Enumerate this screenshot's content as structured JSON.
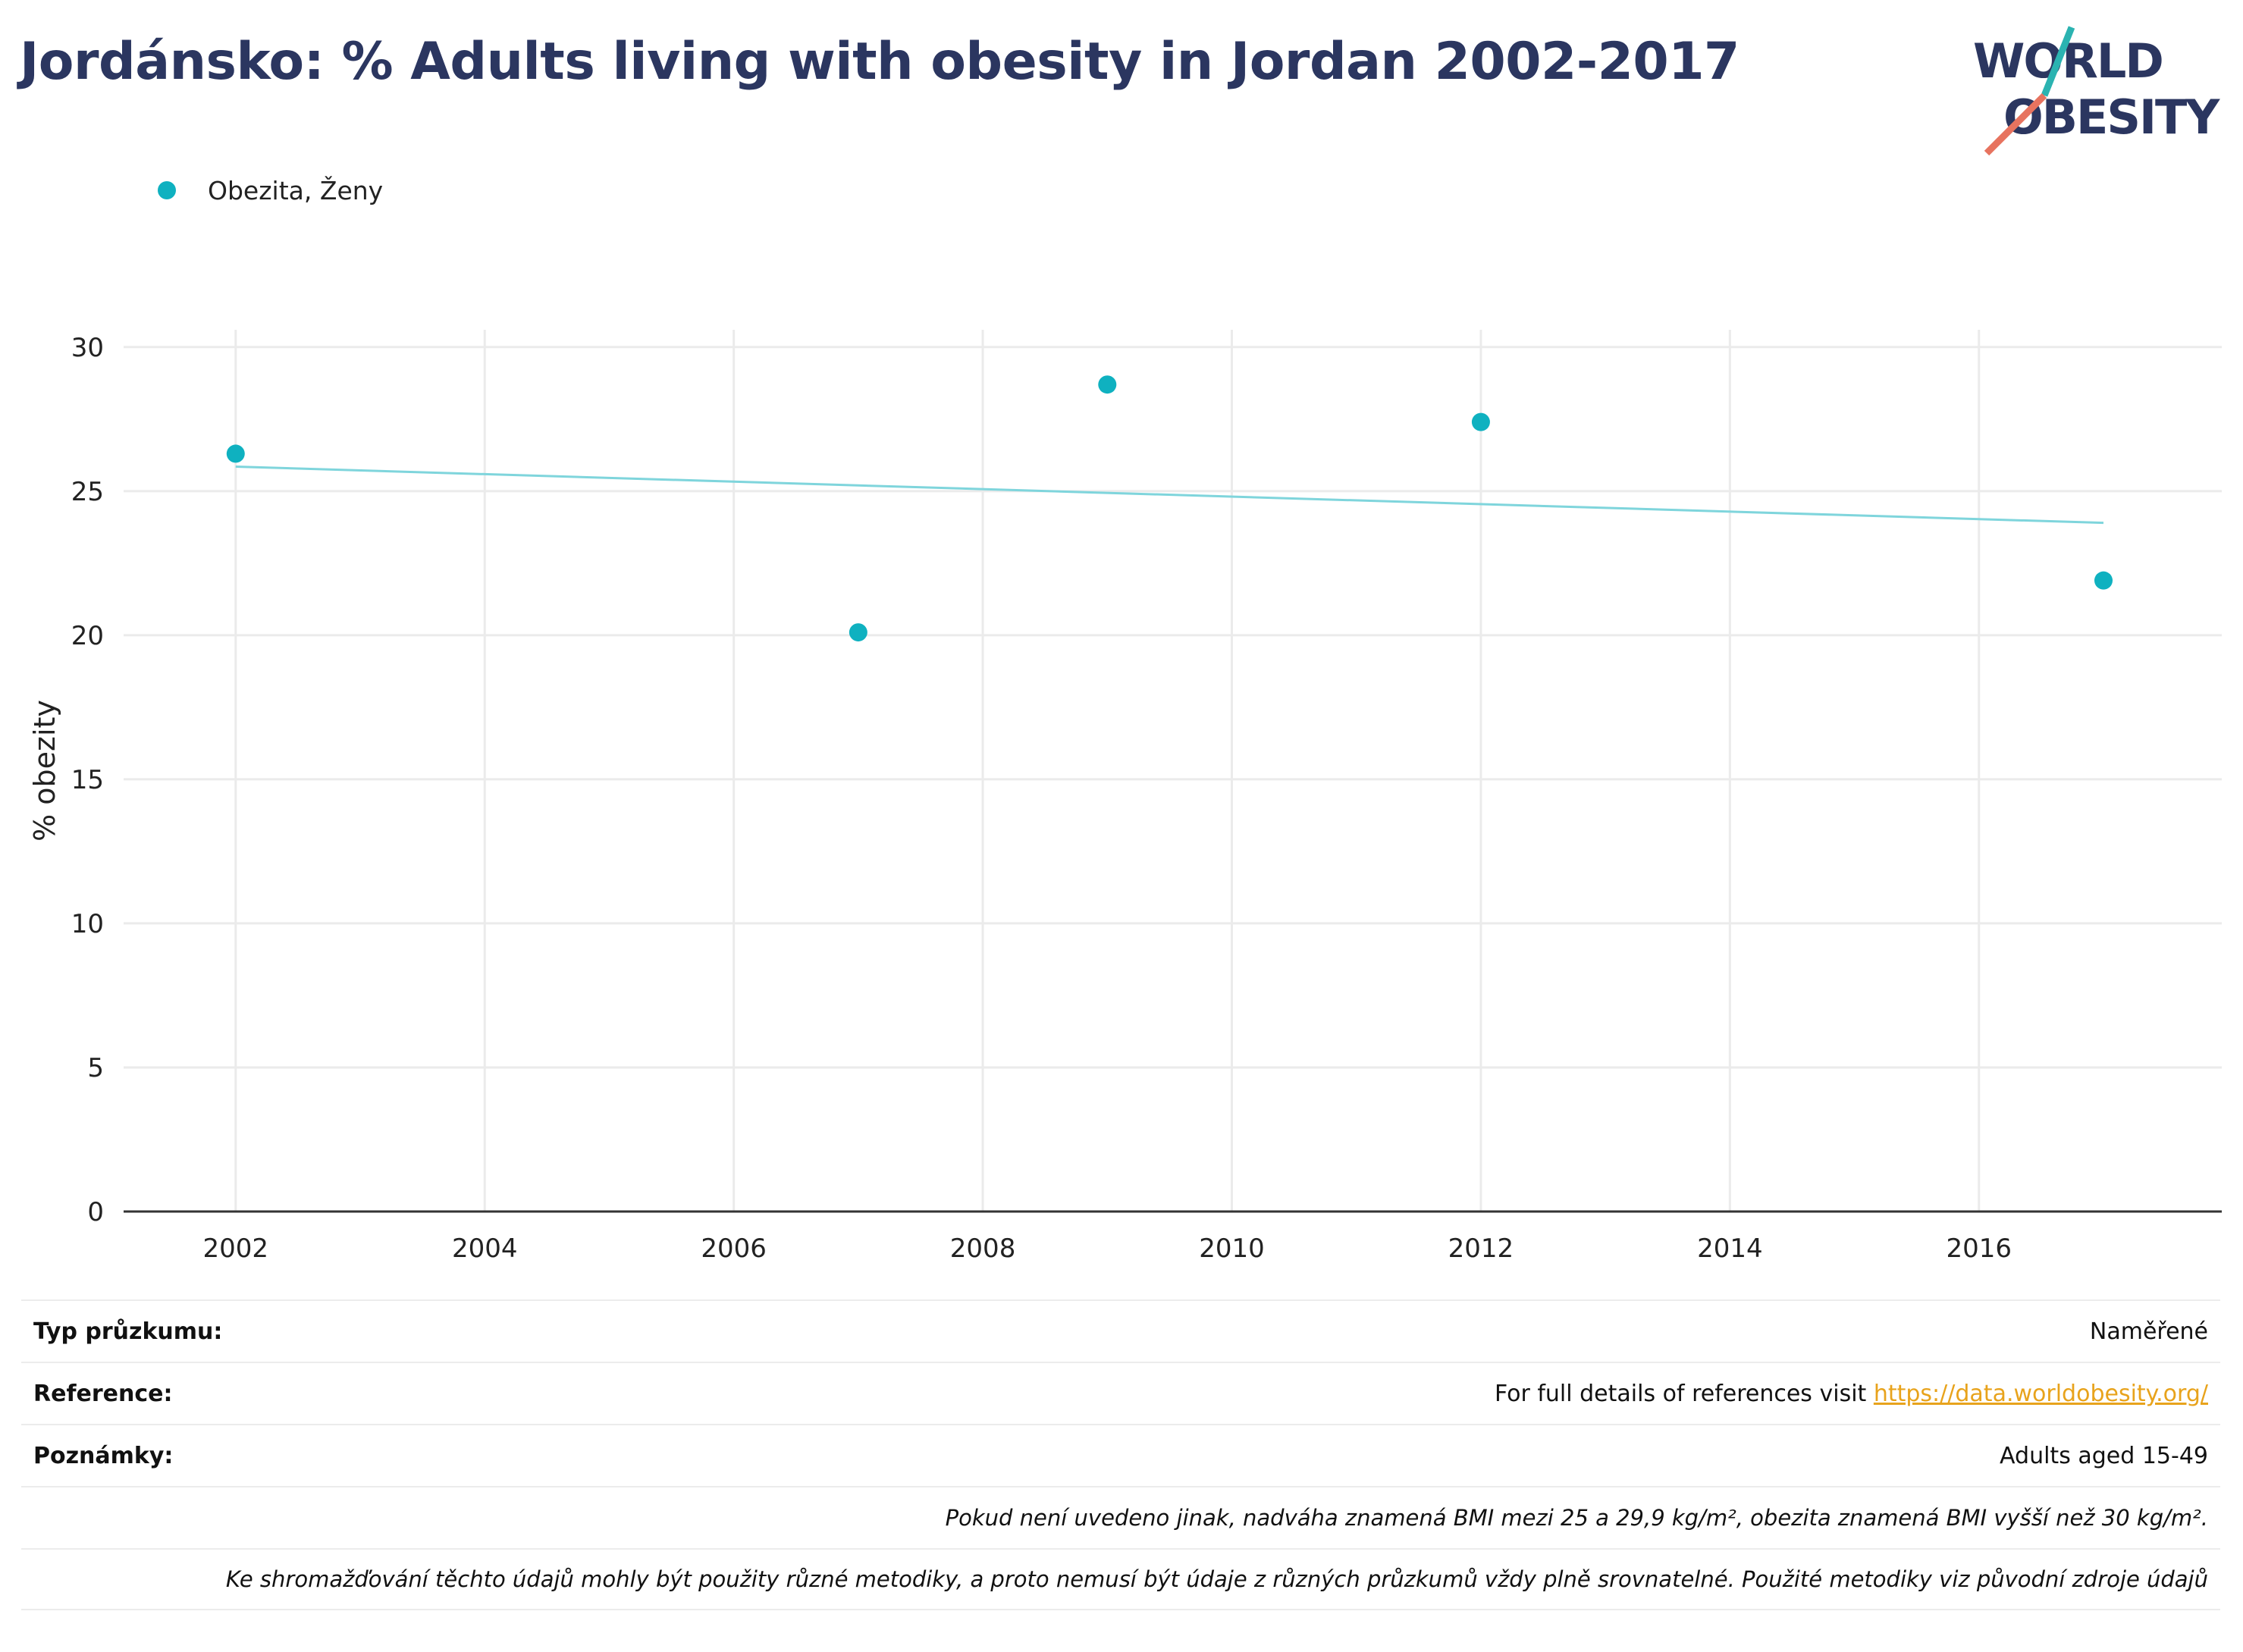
{
  "title": "Jordánsko: % Adults living with obesity in Jordan 2002-2017",
  "logo": {
    "line1": "WORLD",
    "line2": "OBESITY",
    "text_color": "#2b3660",
    "slash_teal": "#2bb3b1",
    "slash_coral": "#e7735f"
  },
  "colors": {
    "point": "#0fb1c0",
    "trend": "#7fd5dc",
    "grid": "#ebebeb",
    "axis": "#333333"
  },
  "chart_data": {
    "type": "scatter",
    "title": "Jordánsko: % Adults living with obesity in Jordan 2002-2017",
    "xlabel": "",
    "ylabel": "% obezity",
    "xlim": [
      2001.1,
      2017.95
    ],
    "ylim": [
      0,
      30.6
    ],
    "x_ticks": [
      2002,
      2004,
      2006,
      2008,
      2010,
      2012,
      2014,
      2016
    ],
    "y_ticks": [
      0,
      5,
      10,
      15,
      20,
      25,
      30
    ],
    "grid": true,
    "legend_position": "top-left",
    "series": [
      {
        "name": "Obezita, Ženy",
        "x": [
          2002,
          2007,
          2009,
          2012,
          2017
        ],
        "y": [
          26.3,
          20.1,
          28.7,
          27.4,
          21.9
        ]
      }
    ],
    "trendline": {
      "x": [
        2002,
        2017
      ],
      "y": [
        25.85,
        23.9
      ]
    }
  },
  "info": {
    "survey_type_label": "Typ průzkumu:",
    "survey_type_value": "Naměřené",
    "reference_label": "Reference:",
    "reference_text": "For full details of references visit ",
    "reference_link": "https://data.worldobesity.org/",
    "notes_label": "Poznámky:",
    "notes_value": "Adults aged 15-49",
    "note_bmi": "Pokud není uvedeno jinak, nadváha znamená BMI mezi 25 a 29,9 kg/m², obezita znamená BMI vyšší než 30 kg/m².",
    "note_methods": "Ke shromažďování těchto údajů mohly být použity různé metodiky, a proto nemusí být údaje z různých průzkumů vždy plně srovnatelné. Použité metodiky viz původní zdroje údajů"
  }
}
